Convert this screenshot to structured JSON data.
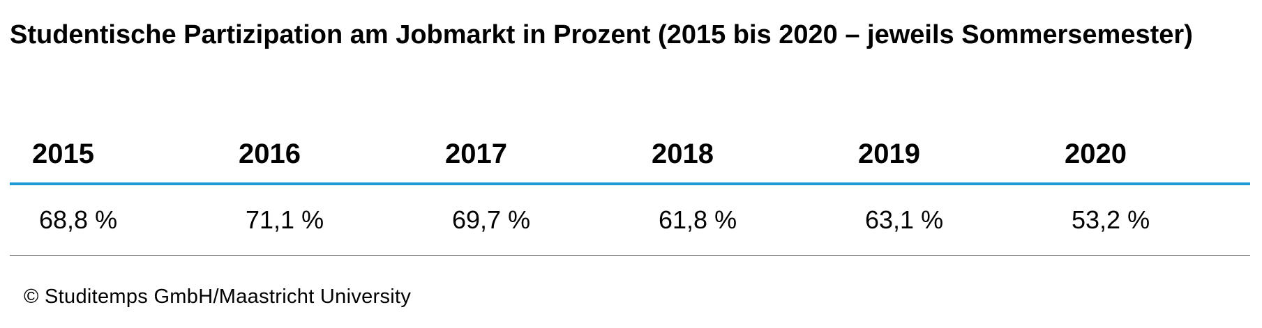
{
  "title": "Studentische Partizipation am Jobmarkt in Prozent (2015 bis 2020 – jeweils Sommersemester)",
  "chart_data": {
    "type": "table",
    "title": "Studentische Partizipation am Jobmarkt in Prozent (2015 bis 2020 – jeweils Sommersemester)",
    "columns": [
      "2015",
      "2016",
      "2017",
      "2018",
      "2019",
      "2020"
    ],
    "values": [
      68.8,
      71.1,
      69.7,
      61.8,
      63.1,
      53.2
    ],
    "value_labels": [
      "68,8 %",
      "71,1 %",
      "69,7 %",
      "61,8 %",
      "63,1 %",
      "53,2 %"
    ],
    "header_rule_color": "#1e9bd7"
  },
  "source": "© Studitemps GmbH/Maastricht University"
}
